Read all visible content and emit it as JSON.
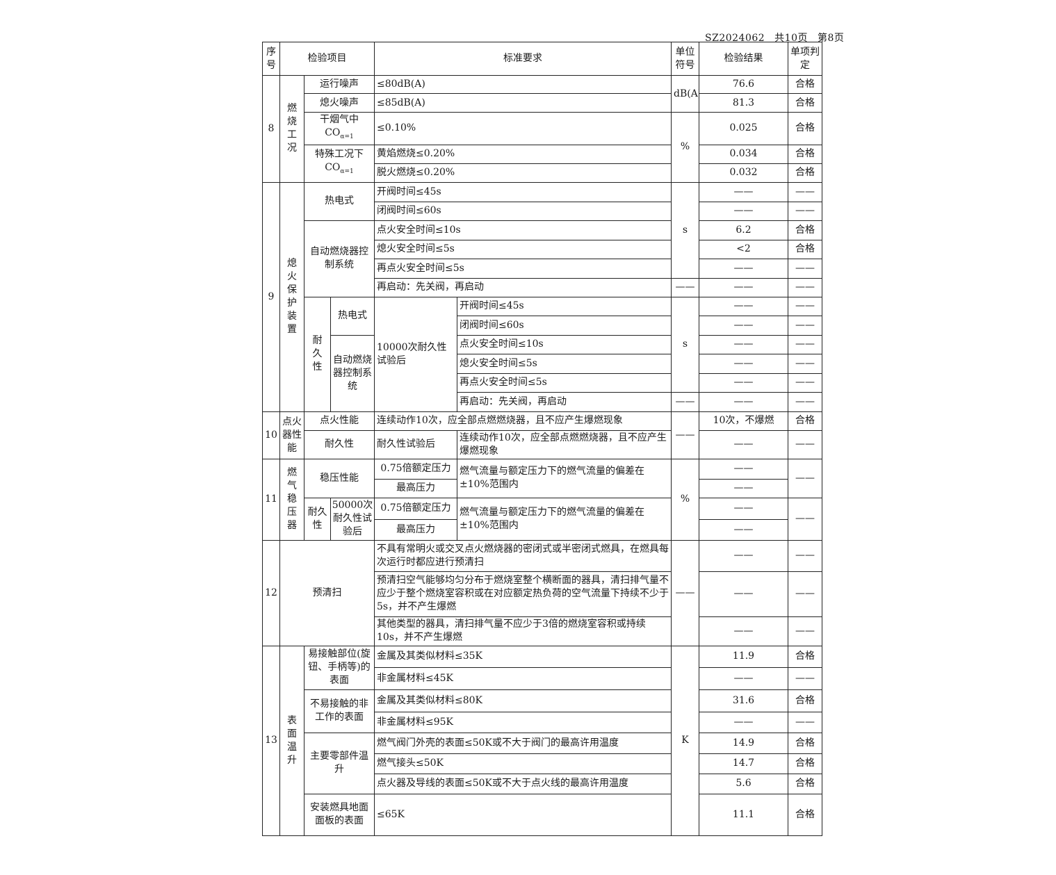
{
  "header_note": {
    "report_no": "SZ2024062",
    "total_pages": "共10页",
    "page": "第8页"
  },
  "columns": {
    "no": "序号",
    "item": "检验项目",
    "std": "标准要求",
    "unit": "单位符号",
    "result": "检验结果",
    "verdict": "单项判定"
  },
  "dash": "——",
  "s8": {
    "no": "8",
    "cat": "燃烧工况",
    "unit_db": "dB(A)",
    "unit_pct": "%",
    "rows": [
      {
        "item": "运行噪声",
        "std": "≤80dB(A)",
        "result": "76.6",
        "verdict": "合格"
      },
      {
        "item": "熄火噪声",
        "std": "≤85dB(A)",
        "result": "81.3",
        "verdict": "合格"
      },
      {
        "item": "干烟气中CO",
        "item_sub": "α=1",
        "std": "≤0.10%",
        "result": "0.025",
        "verdict": "合格"
      },
      {
        "item": "特殊工况下CO",
        "item_sub": "α=1",
        "std": "黄焰燃烧≤0.20%",
        "result": "0.034",
        "verdict": "合格"
      },
      {
        "std": "脱火燃烧≤0.20%",
        "result": "0.032",
        "verdict": "合格"
      }
    ]
  },
  "s9": {
    "no": "9",
    "cat": "熄火保护装置",
    "unit_s": "s",
    "thermo": "热电式",
    "auto": "自动燃烧器控制系统",
    "durability": "耐久性",
    "auto_short": "自动燃烧器控制系统",
    "after": "10000次耐久性试验后",
    "rows": [
      {
        "std": "开阀时间≤45s",
        "result": "——",
        "verdict": "——"
      },
      {
        "std": "闭阀时间≤60s",
        "result": "——",
        "verdict": "——"
      },
      {
        "std": "点火安全时间≤10s",
        "result": "6.2",
        "verdict": "合格"
      },
      {
        "std": "熄火安全时间≤5s",
        "result": "<2",
        "verdict": "合格"
      },
      {
        "std": "再点火安全时间≤5s",
        "result": "——",
        "verdict": "——"
      },
      {
        "std": "再启动：先关阀，再启动",
        "result": "——",
        "verdict": "——"
      },
      {
        "std": "开阀时间≤45s",
        "result": "——",
        "verdict": "——"
      },
      {
        "std": "闭阀时间≤60s",
        "result": "——",
        "verdict": "——"
      },
      {
        "std": "点火安全时间≤10s",
        "result": "——",
        "verdict": "——"
      },
      {
        "std": "熄火安全时间≤5s",
        "result": "——",
        "verdict": "——"
      },
      {
        "std": "再点火安全时间≤5s",
        "result": "——",
        "verdict": "——"
      },
      {
        "std": "再启动：先关阀，再启动",
        "result": "——",
        "verdict": "——"
      }
    ]
  },
  "s10": {
    "no": "10",
    "cat": "点火器性能",
    "rows": [
      {
        "item": "点火性能",
        "std": "连续动作10次，应全部点燃燃烧器，且不应产生爆燃现象",
        "result": "10次，不爆燃",
        "verdict": "合格"
      },
      {
        "item": "耐久性",
        "cond": "耐久性试验后",
        "std": "连续动作10次，应全部点燃燃烧器，且不应产生爆燃现象",
        "result": "——",
        "verdict": "——"
      }
    ]
  },
  "s11": {
    "no": "11",
    "cat": "燃气稳压器",
    "unit": "%",
    "item1": "稳压性能",
    "durability": "耐久性",
    "after": "50000次耐久性试验后",
    "p1": "0.75倍额定压力",
    "p2": "最高压力",
    "std": "燃气流量与额定压力下的燃气流量的偏差在±10%范围内"
  },
  "s12": {
    "no": "12",
    "item": "预清扫",
    "rows": [
      "不具有常明火或交叉点火燃烧器的密闭式或半密闭式燃具，在燃具每次运行时都应进行预清扫",
      "预清扫空气能够均匀分布于燃烧室整个横断面的器具，清扫排气量不应少于整个燃烧室容积或在对应额定热负荷的空气流量下持续不少于5s，并不产生爆燃",
      "其他类型的器具，清扫排气量不应少于3倍的燃烧室容积或持续10s，并不产生爆燃"
    ]
  },
  "s13": {
    "no": "13",
    "cat": "表面温升",
    "unit": "K",
    "items": [
      "易接触部位(旋钮、手柄等)的表面",
      "不易接触的非工作的表面",
      "主要零部件温升",
      "安装燃具地面面板的表面"
    ],
    "rows": [
      {
        "std": "金属及其类似材料≤35K",
        "result": "11.9",
        "verdict": "合格"
      },
      {
        "std": "非金属材料≤45K",
        "result": "——",
        "verdict": "——"
      },
      {
        "std": "金属及其类似材料≤80K",
        "result": "31.6",
        "verdict": "合格"
      },
      {
        "std": "非金属材料≤95K",
        "result": "——",
        "verdict": "——"
      },
      {
        "std": "燃气阀门外壳的表面≤50K或不大于阀门的最高许用温度",
        "result": "14.9",
        "verdict": "合格"
      },
      {
        "std": "燃气接头≤50K",
        "result": "14.7",
        "verdict": "合格"
      },
      {
        "std": "点火器及导线的表面≤50K或不大于点火线的最高许用温度",
        "result": "5.6",
        "verdict": "合格"
      },
      {
        "std": "≤65K",
        "result": "11.1",
        "verdict": "合格"
      }
    ]
  }
}
